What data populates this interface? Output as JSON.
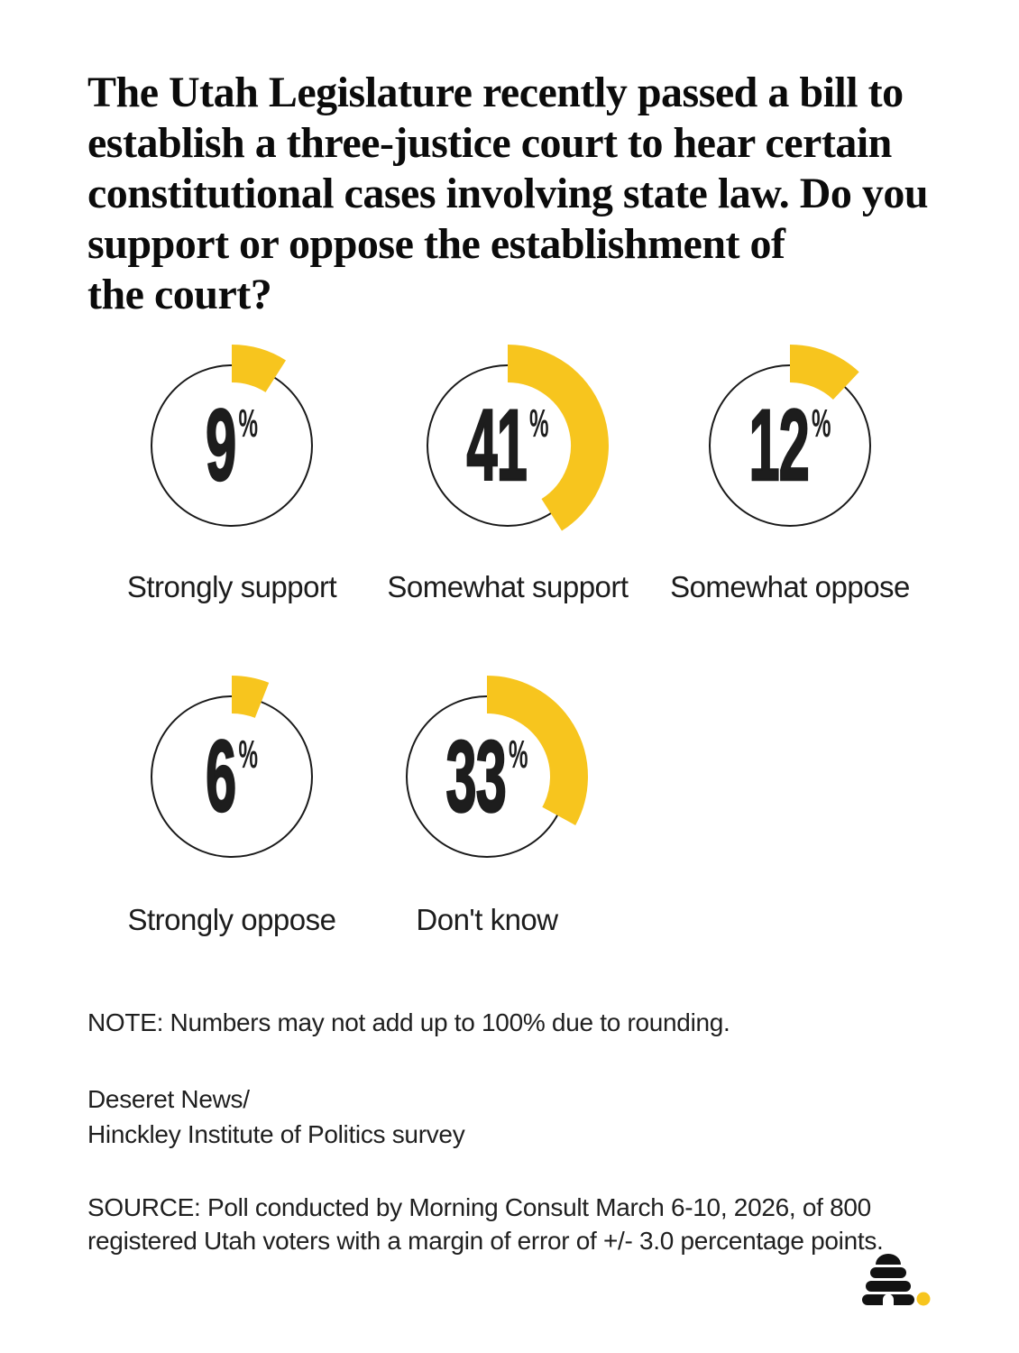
{
  "title": {
    "lines": [
      "The Utah Legislature recently passed a bill to",
      "establish a three-justice court to hear certain",
      "constitutional cases involving state law. Do you",
      "support or oppose the establishment of",
      "the court?"
    ]
  },
  "chart_data": {
    "type": "donut",
    "title": "The Utah Legislature recently passed a bill to establish a three-justice court to hear certain constitutional cases involving state law. Do you support or oppose the establishment of the court?",
    "unit": "%",
    "accent_color": "#F7C51E",
    "ring_color": "#1a1a1a",
    "charts": [
      {
        "label": "Strongly support",
        "value": 9
      },
      {
        "label": "Somewhat support",
        "value": 41
      },
      {
        "label": "Somewhat oppose",
        "value": 12
      },
      {
        "label": "Strongly oppose",
        "value": 6
      },
      {
        "label": "Don't know",
        "value": 33
      }
    ]
  },
  "footnotes": {
    "note": "NOTE: Numbers may not add up to 100% due to rounding.",
    "credit_lines": [
      "Deseret News/",
      "Hinckley Institute of Politics survey"
    ],
    "source_lines": [
      "SOURCE: Poll conducted by Morning Consult March 6-10, 2026, of 800",
      "registered Utah voters with a margin of error of +/- 3.0 percentage points."
    ]
  },
  "logo": {
    "name": "deseret-news-beehive-logo",
    "hive_color": "#121212",
    "dot_color": "#F7C51E"
  }
}
